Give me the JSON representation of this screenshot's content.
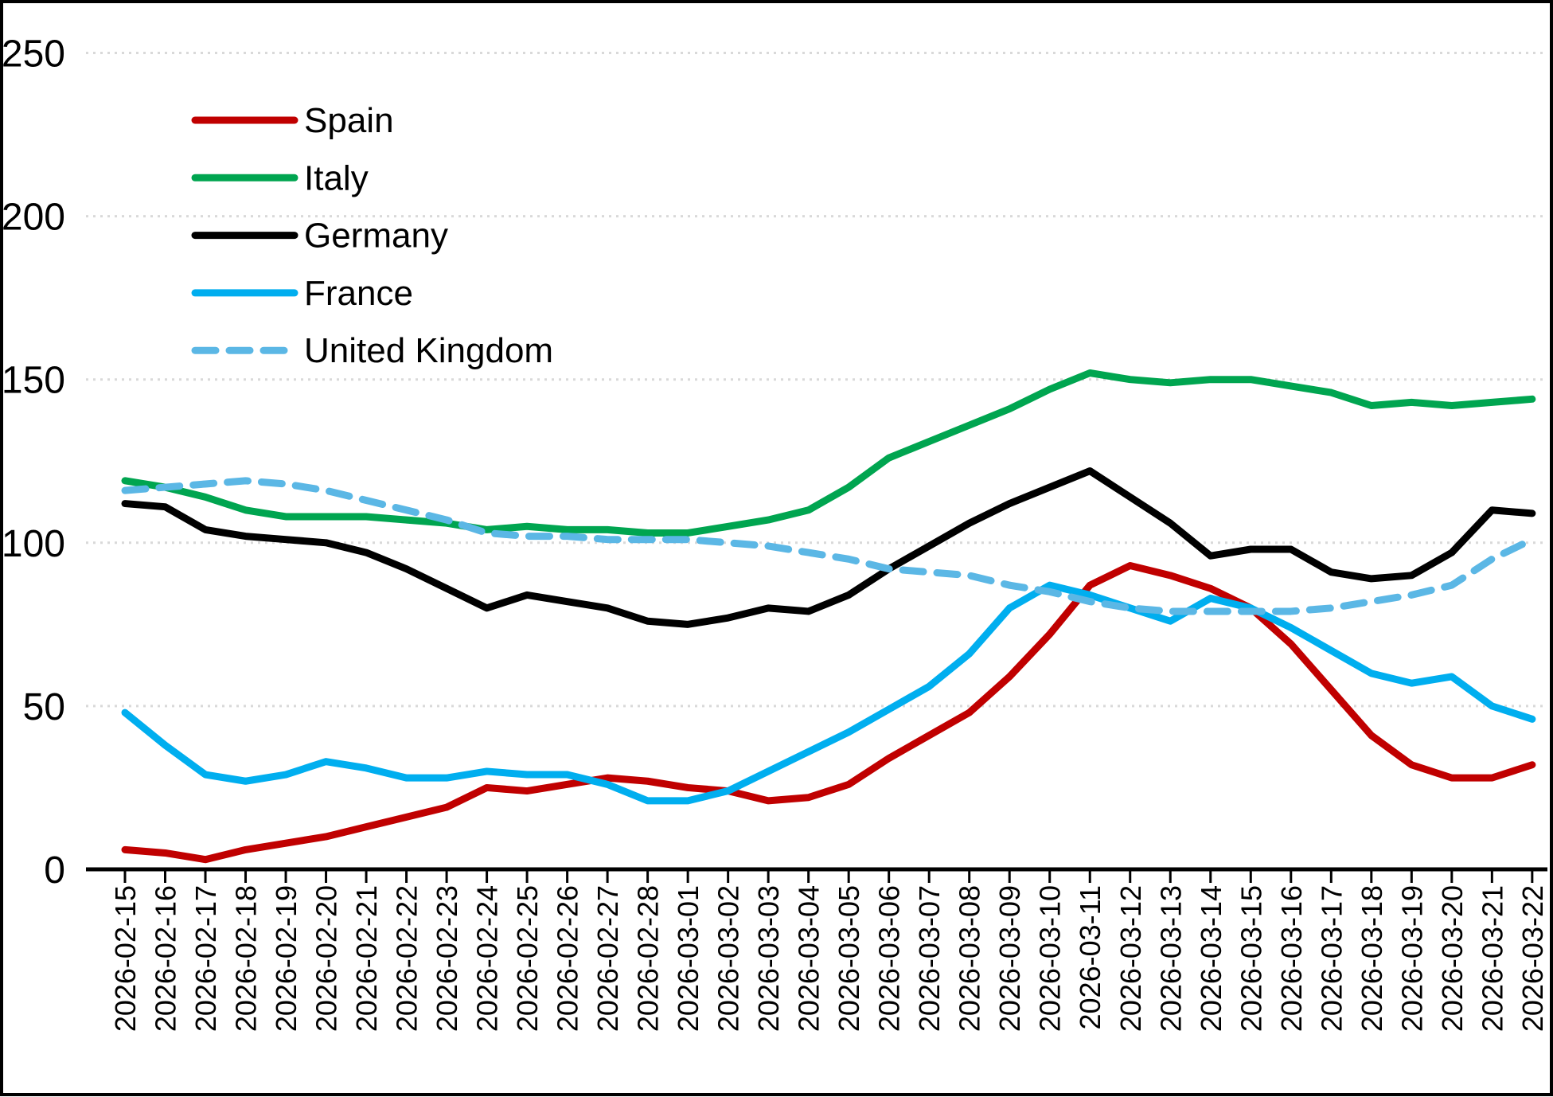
{
  "chart_data": {
    "type": "line",
    "title": "",
    "xlabel": "",
    "ylabel": "",
    "grid": "horizontal-dotted",
    "gridline_color": "#D9D9D9",
    "axis_color": "#000000",
    "legend_position": "top-left-inside",
    "ylim": [
      0,
      250
    ],
    "yticks": [
      "0",
      "50",
      "100",
      "150",
      "200",
      "250"
    ],
    "x": [
      "2026-02-15",
      "2026-02-16",
      "2026-02-17",
      "2026-02-18",
      "2026-02-19",
      "2026-02-20",
      "2026-02-21",
      "2026-02-22",
      "2026-02-23",
      "2026-02-24",
      "2026-02-25",
      "2026-02-26",
      "2026-02-27",
      "2026-02-28",
      "2026-03-01",
      "2026-03-02",
      "2026-03-03",
      "2026-03-04",
      "2026-03-05",
      "2026-03-06",
      "2026-03-07",
      "2026-03-08",
      "2026-03-09",
      "2026-03-10",
      "2026-03-11",
      "2026-03-12",
      "2026-03-13",
      "2026-03-14",
      "2026-03-15",
      "2026-03-16",
      "2026-03-17",
      "2026-03-18",
      "2026-03-19",
      "2026-03-20",
      "2026-03-21",
      "2026-03-22"
    ],
    "series": [
      {
        "name": "Spain",
        "color": "#C00000",
        "style": "solid",
        "values": [
          6,
          5,
          3,
          6,
          8,
          10,
          13,
          16,
          19,
          25,
          24,
          26,
          28,
          27,
          25,
          24,
          21,
          22,
          26,
          34,
          41,
          48,
          59,
          72,
          87,
          93,
          90,
          86,
          80,
          69,
          55,
          41,
          32,
          28,
          28,
          32
        ]
      },
      {
        "name": "Italy",
        "color": "#00A550",
        "style": "solid",
        "values": [
          119,
          117,
          114,
          110,
          108,
          108,
          108,
          107,
          106,
          104,
          105,
          104,
          104,
          103,
          103,
          105,
          107,
          110,
          117,
          126,
          131,
          136,
          141,
          147,
          152,
          150,
          149,
          150,
          150,
          148,
          146,
          142,
          143,
          142,
          143,
          144
        ]
      },
      {
        "name": "Germany",
        "color": "#000000",
        "style": "solid",
        "values": [
          112,
          111,
          104,
          102,
          101,
          100,
          97,
          92,
          86,
          80,
          84,
          82,
          80,
          76,
          75,
          77,
          80,
          79,
          84,
          92,
          99,
          106,
          112,
          117,
          122,
          114,
          106,
          96,
          98,
          98,
          91,
          89,
          90,
          97,
          110,
          109
        ]
      },
      {
        "name": "France",
        "color": "#00AEEF",
        "style": "solid",
        "values": [
          48,
          38,
          29,
          27,
          29,
          33,
          31,
          28,
          28,
          30,
          29,
          29,
          26,
          21,
          21,
          24,
          30,
          36,
          42,
          49,
          56,
          66,
          80,
          87,
          84,
          80,
          76,
          83,
          80,
          74,
          67,
          60,
          57,
          59,
          50,
          46
        ]
      },
      {
        "name": "United Kingdom",
        "color": "#5BB7E5",
        "style": "dashed",
        "values": [
          116,
          117,
          118,
          119,
          118,
          116,
          113,
          110,
          107,
          103,
          102,
          102,
          101,
          101,
          101,
          100,
          99,
          97,
          95,
          92,
          91,
          90,
          87,
          85,
          82,
          80,
          79,
          79,
          79,
          79,
          80,
          82,
          84,
          87,
          95,
          101
        ]
      }
    ]
  }
}
